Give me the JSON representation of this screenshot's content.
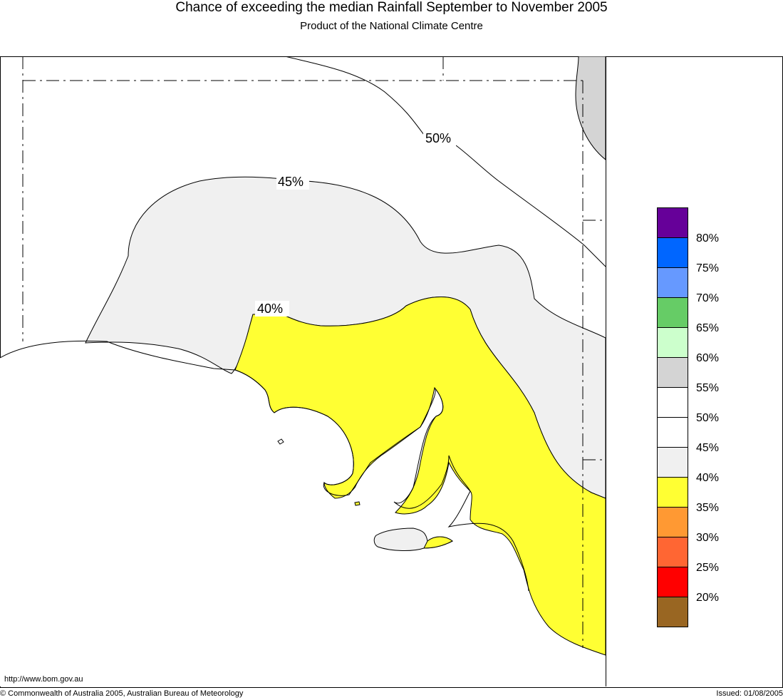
{
  "header": {
    "title": "Chance of exceeding the median Rainfall September to November 2005",
    "subtitle": "Product of the National Climate Centre"
  },
  "map": {
    "contour_labels": [
      "50%",
      "45%",
      "40%"
    ]
  },
  "legend": {
    "items": [
      {
        "color": "#660099",
        "label": "80%"
      },
      {
        "color": "#0066ff",
        "label": "75%"
      },
      {
        "color": "#6699ff",
        "label": "70%"
      },
      {
        "color": "#66cc66",
        "label": "65%"
      },
      {
        "color": "#ccffcc",
        "label": "60%"
      },
      {
        "color": "#d4d4d4",
        "label": "55%"
      },
      {
        "color": "#ffffff",
        "label": "50%"
      },
      {
        "color": "#ffffff",
        "label": "45%"
      },
      {
        "color": "#f0f0f0",
        "label": "40%"
      },
      {
        "color": "#ffff33",
        "label": "35%"
      },
      {
        "color": "#ff9933",
        "label": "30%"
      },
      {
        "color": "#ff6633",
        "label": "25%"
      },
      {
        "color": "#ff0000",
        "label": "20%"
      },
      {
        "color": "#996622",
        "label": ""
      }
    ]
  },
  "footer": {
    "url": "http://www.bom.gov.au",
    "copyright": "© Commonwealth of Australia 2005, Australian Bureau of Meteorology",
    "issued": "Issued: 01/08/2005"
  }
}
